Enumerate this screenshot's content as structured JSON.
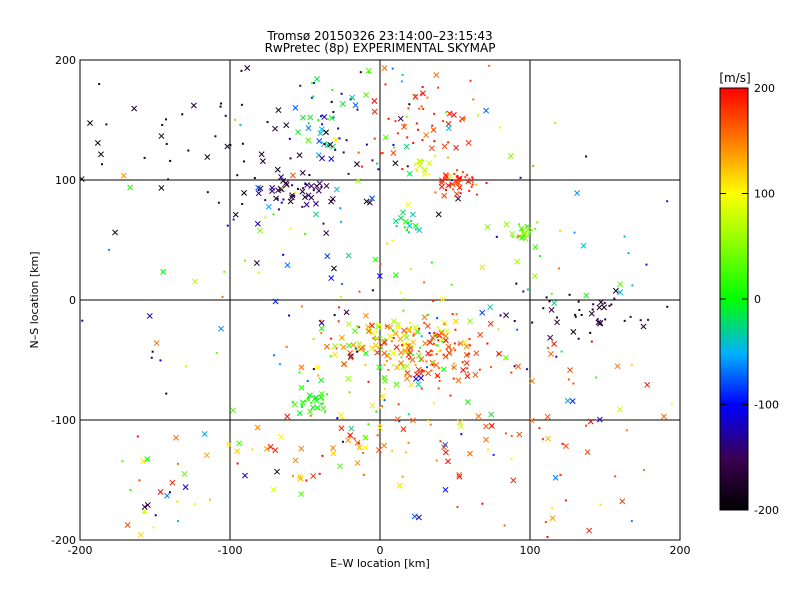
{
  "chart_data": {
    "type": "scatter",
    "title": "Tromsø 20150326 23:14:00–23:15:43",
    "subtitle": "RwPretec (8p) EXPERIMENTAL SKYMAP",
    "xlabel": "E–W location [km]",
    "ylabel": "N–S location [km]",
    "xlim": [
      -200,
      200
    ],
    "ylim": [
      -200,
      200
    ],
    "x_ticks": [
      -200,
      -100,
      0,
      100,
      200
    ],
    "y_ticks": [
      -200,
      -100,
      0,
      100,
      200
    ],
    "grid": true,
    "colorbar": {
      "label": "[m/s]",
      "range": [
        -200,
        200
      ],
      "ticks": [
        -200,
        -100,
        0,
        100,
        200
      ]
    },
    "marker_types": [
      "cross",
      "dot"
    ],
    "clusters": [
      {
        "cx": 10,
        "cy": -35,
        "sx": 22,
        "sy": 14,
        "n": 170,
        "vmin": 0,
        "vmax": 200
      },
      {
        "cx": 45,
        "cy": -45,
        "sx": 16,
        "sy": 12,
        "n": 70,
        "vmin": 150,
        "vmax": 200
      },
      {
        "cx": 50,
        "cy": 98,
        "sx": 7,
        "sy": 5,
        "n": 35,
        "vmin": 170,
        "vmax": 200
      },
      {
        "cx": 30,
        "cy": 112,
        "sx": 6,
        "sy": 5,
        "n": 15,
        "vmin": 60,
        "vmax": 100
      },
      {
        "cx": 97,
        "cy": 60,
        "sx": 6,
        "sy": 5,
        "n": 25,
        "vmin": 20,
        "vmax": 60
      },
      {
        "cx": 20,
        "cy": 65,
        "sx": 5,
        "sy": 6,
        "n": 15,
        "vmin": -40,
        "vmax": 10
      },
      {
        "cx": -45,
        "cy": -85,
        "sx": 7,
        "sy": 6,
        "n": 30,
        "vmin": -20,
        "vmax": 30
      },
      {
        "cx": -60,
        "cy": 90,
        "sx": 15,
        "sy": 8,
        "n": 45,
        "vmin": -200,
        "vmax": -120
      },
      {
        "cx": -30,
        "cy": 150,
        "sx": 20,
        "sy": 25,
        "n": 50,
        "vmin": -150,
        "vmax": 40
      },
      {
        "cx": 30,
        "cy": 150,
        "sx": 22,
        "sy": 25,
        "n": 55,
        "vmin": 150,
        "vmax": 200
      },
      {
        "cx": -100,
        "cy": 140,
        "sx": 50,
        "sy": 30,
        "n": 55,
        "vmin": -200,
        "vmax": -160
      },
      {
        "cx": 140,
        "cy": -15,
        "sx": 30,
        "sy": 8,
        "n": 40,
        "vmin": -200,
        "vmax": -150
      },
      {
        "cx": -150,
        "cy": -160,
        "sx": 20,
        "sy": 25,
        "n": 25,
        "vmin": -200,
        "vmax": 200
      },
      {
        "cx": 0,
        "cy": -120,
        "sx": 55,
        "sy": 20,
        "n": 70,
        "vmin": 100,
        "vmax": 200
      },
      {
        "cx": 120,
        "cy": -120,
        "sx": 40,
        "sy": 50,
        "n": 45,
        "vmin": 150,
        "vmax": 200
      },
      {
        "cx": 0,
        "cy": 0,
        "sx": 110,
        "sy": 110,
        "n": 260,
        "vmin": -200,
        "vmax": 200
      }
    ]
  }
}
